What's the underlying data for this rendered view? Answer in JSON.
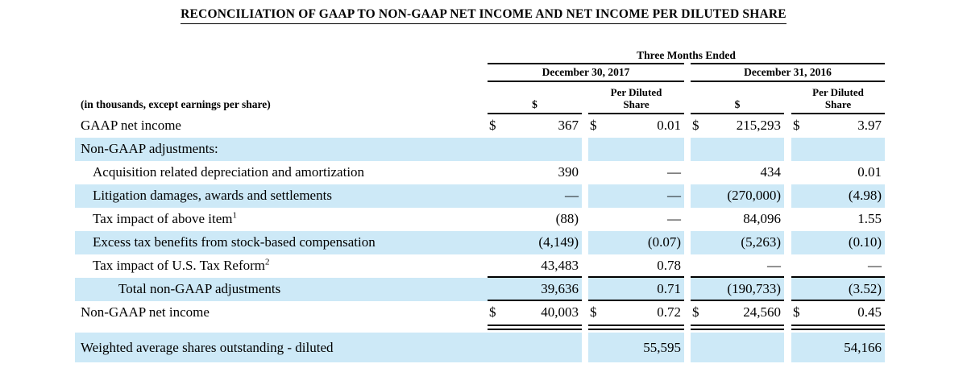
{
  "title": "RECONCILIATION OF GAAP TO NON-GAAP NET INCOME AND NET INCOME PER DILUTED SHARE",
  "table": {
    "currency": "$",
    "period_header": "Three Months Ended",
    "column_groups": [
      {
        "label": "December 30, 2017"
      },
      {
        "label": "December 31, 2016"
      }
    ],
    "sub_columns": {
      "dollar": "$",
      "per_diluted_share": "Per Diluted Share"
    },
    "row_header_note": "(in thousands, except earnings per share)",
    "rows": [
      {
        "label": "GAAP net income",
        "values": [
          "367",
          "0.01",
          "215,293",
          "3.97"
        ]
      },
      {
        "label": "Non-GAAP adjustments:",
        "values": [
          "",
          "",
          "",
          ""
        ]
      },
      {
        "label": "Acquisition related depreciation and amortization",
        "values": [
          "390",
          "—",
          "434",
          "0.01"
        ]
      },
      {
        "label": "Litigation damages, awards and settlements",
        "values": [
          "—",
          "—",
          "(270,000)",
          "(4.98)"
        ]
      },
      {
        "label": "Tax impact of above item",
        "superscript": "1",
        "values": [
          "(88)",
          "—",
          "84,096",
          "1.55"
        ]
      },
      {
        "label": "Excess tax benefits from stock-based compensation",
        "values": [
          "(4,149)",
          "(0.07)",
          "(5,263)",
          "(0.10)"
        ]
      },
      {
        "label": "Tax impact of U.S. Tax Reform",
        "superscript": "2",
        "values": [
          "43,483",
          "0.78",
          "—",
          "—"
        ]
      },
      {
        "label": "Total non-GAAP adjustments",
        "values": [
          "39,636",
          "0.71",
          "(190,733)",
          "(3.52)"
        ]
      },
      {
        "label": "Non-GAAP net income",
        "values": [
          "40,003",
          "0.72",
          "24,560",
          "0.45"
        ]
      },
      {
        "label": "Weighted average shares outstanding - diluted",
        "values": [
          "",
          "55,595",
          "",
          "54,166"
        ]
      }
    ]
  },
  "colors": {
    "highlight": "#cde9f7",
    "rule": "#000000",
    "text": "#000000"
  }
}
